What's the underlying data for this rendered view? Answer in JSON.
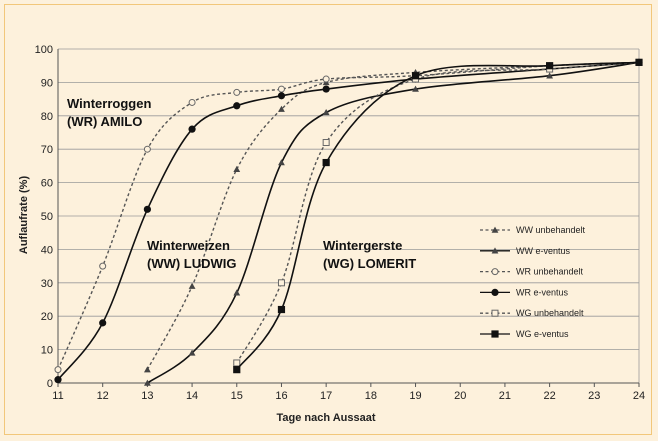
{
  "chart_data": {
    "type": "line",
    "xlabel": "Tage nach Aussaat",
    "ylabel": "Auflaufrate (%)",
    "xlim": [
      11,
      24
    ],
    "ylim": [
      0,
      100
    ],
    "xticks": [
      11,
      12,
      13,
      14,
      15,
      16,
      17,
      18,
      19,
      20,
      21,
      22,
      23,
      24
    ],
    "yticks": [
      0,
      10,
      20,
      30,
      40,
      50,
      60,
      70,
      80,
      90,
      100
    ],
    "grid": "horizontal",
    "legend_position": "right",
    "annotations": [
      {
        "lines": [
          "Winterroggen",
          "(WR) AMILO"
        ]
      },
      {
        "lines": [
          "Winterweizen",
          "(WW) LUDWIG"
        ]
      },
      {
        "lines": [
          "Wintergerste",
          "(WG) LOMERIT"
        ]
      }
    ],
    "series": [
      {
        "name": "WW unbehandelt",
        "style": "dashed",
        "marker": "triangle",
        "x": [
          13,
          14,
          15,
          16,
          17,
          19,
          22,
          24
        ],
        "y": [
          4,
          29,
          64,
          82,
          90,
          93,
          95,
          96
        ]
      },
      {
        "name": "WW e-ventus",
        "style": "solid",
        "marker": "triangle",
        "x": [
          13,
          14,
          15,
          16,
          17,
          19,
          22,
          24
        ],
        "y": [
          0,
          9,
          27,
          66,
          81,
          88,
          92,
          96
        ]
      },
      {
        "name": "WR unbehandelt",
        "style": "dashed",
        "marker": "circle-open",
        "x": [
          11,
          12,
          13,
          14,
          15,
          16,
          17,
          19,
          22,
          24
        ],
        "y": [
          4,
          35,
          70,
          84,
          87,
          88,
          91,
          92,
          95,
          96
        ]
      },
      {
        "name": "WR e-ventus",
        "style": "solid",
        "marker": "circle",
        "x": [
          11,
          12,
          13,
          14,
          15,
          16,
          17,
          19,
          22,
          24
        ],
        "y": [
          1,
          18,
          52,
          76,
          83,
          86,
          88,
          91,
          94,
          96
        ]
      },
      {
        "name": "WG unbehandelt",
        "style": "dashed",
        "marker": "square-open",
        "x": [
          15,
          16,
          17,
          19,
          22,
          24
        ],
        "y": [
          6,
          30,
          72,
          91,
          94,
          96
        ]
      },
      {
        "name": "WG e-ventus",
        "style": "solid",
        "marker": "square",
        "x": [
          15,
          16,
          17,
          19,
          22,
          24
        ],
        "y": [
          4,
          22,
          66,
          92,
          95,
          96
        ]
      }
    ]
  }
}
